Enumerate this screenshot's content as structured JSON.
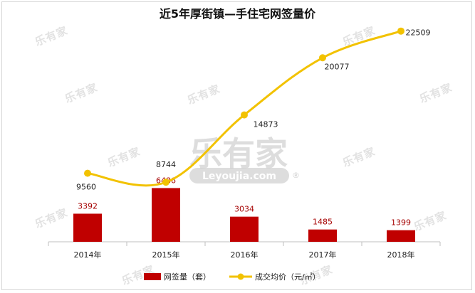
{
  "chart_data": {
    "type": "bar+line",
    "title": "近5年厚街镇—手住宅网签量价",
    "categories": [
      "2014年",
      "2015年",
      "2016年",
      "2017年",
      "2018年"
    ],
    "series": [
      {
        "name": "网签量（套）",
        "type": "bar",
        "color": "#c00000",
        "values": [
          3392,
          6486,
          3034,
          1485,
          1399
        ]
      },
      {
        "name": "成交均价（元/㎡）",
        "type": "line",
        "color": "#f2c200",
        "values": [
          9560,
          8744,
          14873,
          20077,
          22509
        ]
      }
    ],
    "legend_position": "bottom",
    "grid": false
  },
  "watermark": {
    "logo_text": "乐有家",
    "url_text": "Leyoujia.com",
    "registered": "®"
  }
}
